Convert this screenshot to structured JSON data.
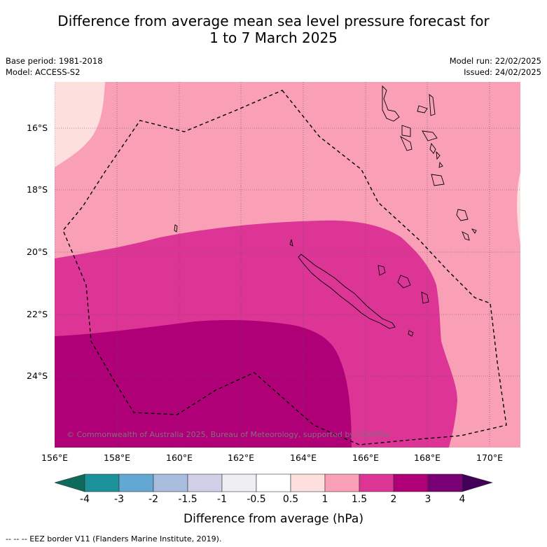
{
  "title_line1": "Difference from average mean sea level pressure forecast for",
  "title_line2": "1 to 7 March 2025",
  "base_period": "Base period: 1981-2018",
  "model": "Model: ACCESS-S2",
  "model_run": "Model run: 22/02/2025",
  "issued": "Issued: 24/02/2025",
  "lat_labels": [
    "16°S",
    "18°S",
    "20°S",
    "22°S",
    "24°S"
  ],
  "lon_labels": [
    "156°E",
    "158°E",
    "160°E",
    "162°E",
    "164°E",
    "166°E",
    "168°E",
    "170°E"
  ],
  "copyright": "© Commonwealth of Australia 2025, Bureau of Meteorology, supported by COSPPac",
  "colorbar": {
    "ticks": [
      "-4",
      "-3",
      "-2",
      "-1.5",
      "-1",
      "-0.5",
      "0.5",
      "1",
      "1.5",
      "2",
      "3",
      "4"
    ],
    "colors": [
      "#0d6b5e",
      "#1b929a",
      "#63a8d3",
      "#a8bcdd",
      "#cfd0e8",
      "#efeef3",
      "#ffffff",
      "#fde0de",
      "#f9a0b7",
      "#dc3596",
      "#b00078",
      "#7a0076",
      "#430059"
    ],
    "title": "Difference from average (hPa)"
  },
  "eez_note": "--  --  -- EEZ border V11 (Flanders Marine Institute, 2019).",
  "colors": {
    "zone_0_5_1": "#fde0de",
    "zone_1_1_5": "#f9a0b7",
    "zone_1_5_2": "#dc3596",
    "zone_2_3": "#b00078"
  }
}
